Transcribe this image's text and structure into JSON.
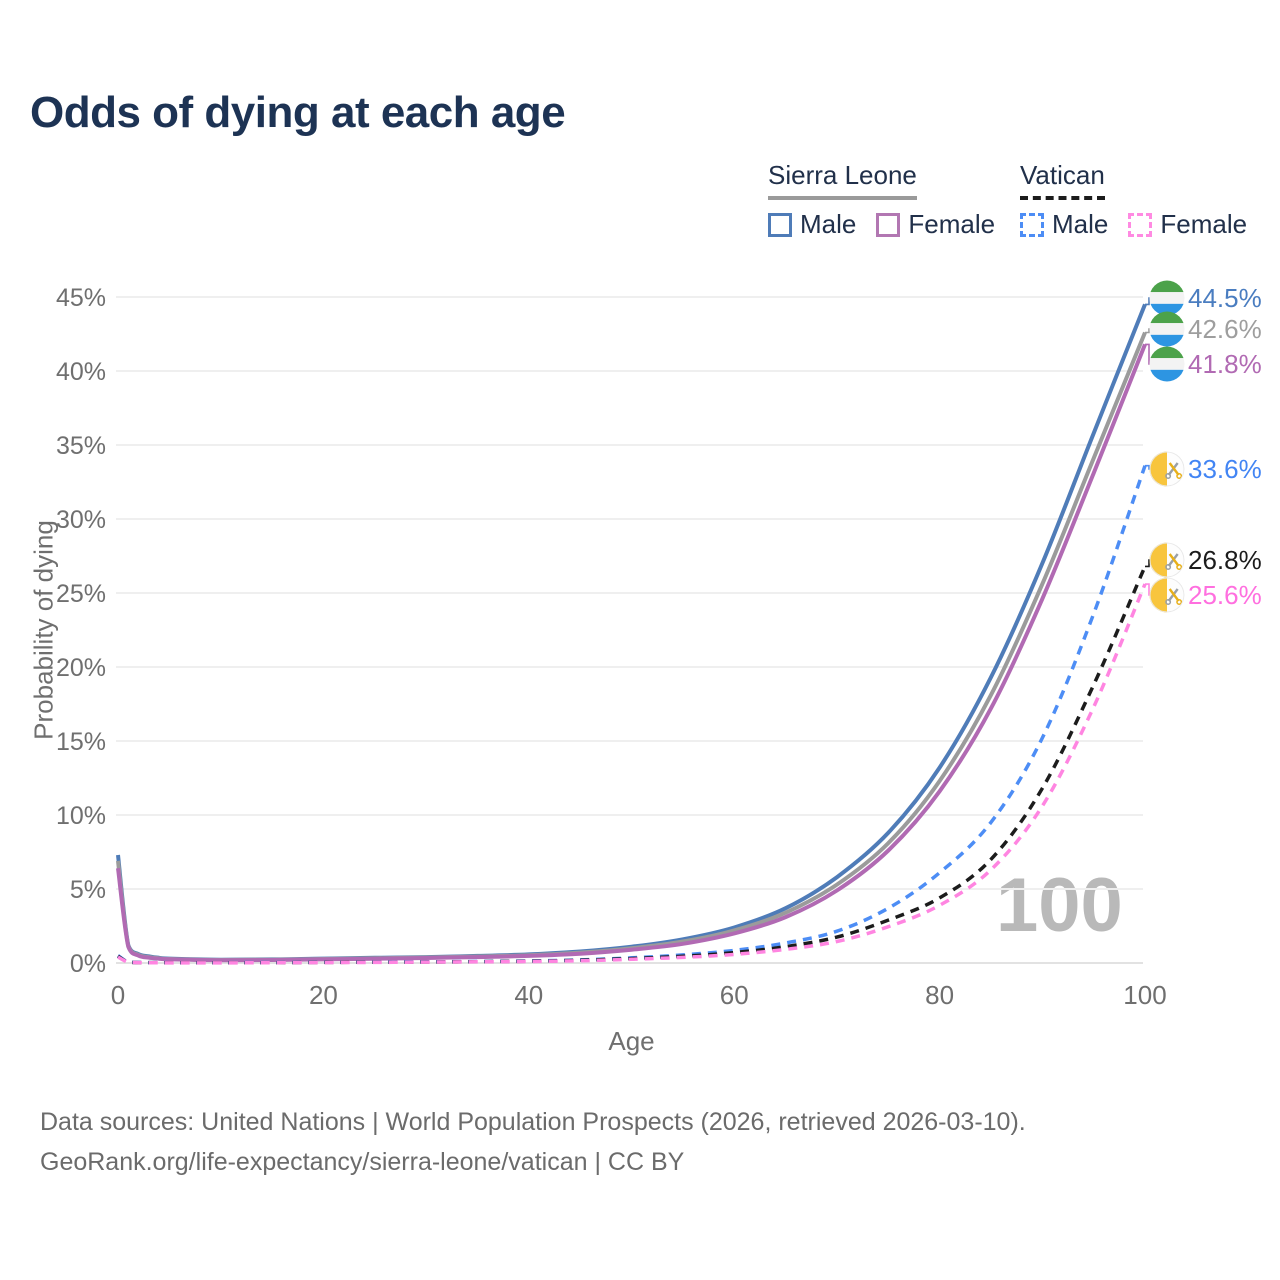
{
  "title": "Odds of dying at each age",
  "legend": {
    "groups": [
      {
        "name": "Sierra Leone",
        "line_style": "solid",
        "underline_color": "#9a9a9a",
        "items": [
          {
            "label": "Male",
            "color": "#4f7cb8"
          },
          {
            "label": "Female",
            "color": "#b277b2"
          }
        ]
      },
      {
        "name": "Vatican",
        "line_style": "dashed",
        "underline_color": "#1c1c1c",
        "items": [
          {
            "label": "Male",
            "color": "#4d8df5"
          },
          {
            "label": "Female",
            "color": "#ff8ae2"
          }
        ]
      }
    ]
  },
  "chart_data": {
    "type": "line",
    "title": "Odds of dying at each age",
    "xlabel": "Age",
    "ylabel": "Probability of dying",
    "xlim": [
      0,
      100
    ],
    "ylim": [
      0,
      45
    ],
    "x_ticks": [
      0,
      20,
      40,
      60,
      80,
      100
    ],
    "y_ticks": [
      0,
      5,
      10,
      15,
      20,
      25,
      30,
      35,
      40,
      45
    ],
    "y_tick_suffix": "%",
    "grid": "horizontal",
    "legend_position": "top-right",
    "watermark": "100",
    "x": [
      0,
      1,
      2,
      3,
      4,
      5,
      10,
      15,
      20,
      25,
      30,
      35,
      40,
      45,
      50,
      55,
      60,
      65,
      70,
      75,
      80,
      85,
      90,
      95,
      100
    ],
    "series": [
      {
        "name": "Sierra Leone Male",
        "country": "Sierra Leone",
        "sex": "Male",
        "style": "solid",
        "color": "#4f7cb8",
        "label_color": "#4a7dc0",
        "flag": "sierra-leone",
        "end_label": "44.5%",
        "values": [
          7.3,
          1.2,
          0.6,
          0.45,
          0.35,
          0.3,
          0.22,
          0.24,
          0.3,
          0.35,
          0.4,
          0.48,
          0.58,
          0.78,
          1.1,
          1.6,
          2.4,
          3.7,
          5.8,
          8.8,
          13.2,
          19.3,
          27.0,
          35.8,
          44.5
        ]
      },
      {
        "name": "Sierra Leone Both sexes",
        "country": "Sierra Leone",
        "sex": "Both",
        "style": "solid",
        "color": "#9b9b9b",
        "label_color": "#9e9e9e",
        "flag": "sierra-leone",
        "end_label": "42.6%",
        "values": [
          6.9,
          1.15,
          0.55,
          0.4,
          0.32,
          0.27,
          0.2,
          0.22,
          0.27,
          0.32,
          0.37,
          0.44,
          0.53,
          0.7,
          1.0,
          1.45,
          2.2,
          3.4,
          5.3,
          8.1,
          12.3,
          18.1,
          25.6,
          34.1,
          42.6
        ]
      },
      {
        "name": "Sierra Leone Female",
        "country": "Sierra Leone",
        "sex": "Female",
        "style": "solid",
        "color": "#b16ab3",
        "label_color": "#b16ab3",
        "flag": "sierra-leone",
        "end_label": "41.8%",
        "values": [
          6.4,
          1.1,
          0.5,
          0.36,
          0.29,
          0.25,
          0.18,
          0.2,
          0.24,
          0.29,
          0.34,
          0.4,
          0.48,
          0.63,
          0.9,
          1.3,
          2.0,
          3.1,
          4.9,
          7.6,
          11.6,
          17.2,
          24.6,
          33.1,
          41.8
        ]
      },
      {
        "name": "Vatican Male",
        "country": "Vatican",
        "sex": "Male",
        "style": "dashed",
        "color": "#4d8df5",
        "label_color": "#4285f4",
        "flag": "vatican",
        "end_label": "33.6%",
        "values": [
          0.5,
          0.06,
          0.04,
          0.03,
          0.03,
          0.02,
          0.02,
          0.03,
          0.05,
          0.06,
          0.08,
          0.1,
          0.14,
          0.21,
          0.35,
          0.55,
          0.85,
          1.35,
          2.15,
          3.7,
          6.1,
          9.5,
          15.2,
          23.6,
          33.6
        ]
      },
      {
        "name": "Vatican Both sexes",
        "country": "Vatican",
        "sex": "Both",
        "style": "dashed",
        "color": "#1c1c1c",
        "label_color": "#1c1c1c",
        "flag": "vatican",
        "end_label": "26.8%",
        "values": [
          0.45,
          0.05,
          0.03,
          0.03,
          0.02,
          0.02,
          0.02,
          0.02,
          0.04,
          0.05,
          0.07,
          0.09,
          0.12,
          0.18,
          0.3,
          0.45,
          0.7,
          1.1,
          1.75,
          2.9,
          4.4,
          7.0,
          11.8,
          18.8,
          26.8
        ]
      },
      {
        "name": "Vatican Female",
        "country": "Vatican",
        "sex": "Female",
        "style": "dashed",
        "color": "#ff85e1",
        "label_color": "#ff6fdf",
        "flag": "vatican",
        "end_label": "25.6%",
        "values": [
          0.4,
          0.05,
          0.03,
          0.02,
          0.02,
          0.01,
          0.01,
          0.02,
          0.03,
          0.04,
          0.06,
          0.08,
          0.1,
          0.15,
          0.25,
          0.38,
          0.58,
          0.92,
          1.45,
          2.45,
          3.9,
          6.3,
          10.6,
          17.3,
          25.6
        ]
      }
    ]
  },
  "footer": {
    "line1": "Data sources: United Nations | World Population Prospects (2026, retrieved 2026-03-10).",
    "line2": "GeoRank.org/life-expectancy/sierra-leone/vatican | CC BY"
  }
}
